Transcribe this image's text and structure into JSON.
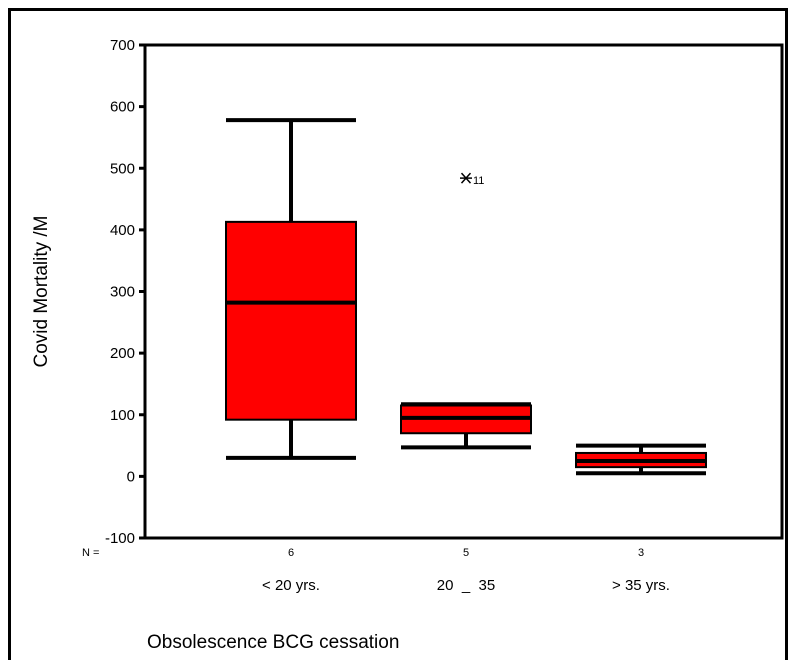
{
  "chart_data": {
    "type": "boxplot",
    "xlabel": "Obsolescence BCG cessation",
    "ylabel": "Covid Mortality /M",
    "ylim": [
      -100,
      700
    ],
    "yticks": [
      -100,
      0,
      100,
      200,
      300,
      400,
      500,
      600,
      700
    ],
    "n_prefix": "N =",
    "box_color": "#ff0000",
    "grid": false,
    "categories": [
      "< 20 yrs.",
      "20  _  35",
      "> 35 yrs."
    ],
    "boxes": [
      {
        "category": "< 20 yrs.",
        "n": "6",
        "whisker_low": 30,
        "q1": 92,
        "median": 282,
        "q3": 413,
        "whisker_high": 578,
        "outliers": []
      },
      {
        "category": "20  _  35",
        "n": "5",
        "whisker_low": 47,
        "q1": 70,
        "median": 95,
        "q3": 115,
        "whisker_high": 117,
        "outliers": [
          {
            "value": 484,
            "label": "11"
          }
        ]
      },
      {
        "category": "> 35 yrs.",
        "n": "3",
        "whisker_low": 5,
        "q1": 15,
        "median": 25,
        "q3": 38,
        "whisker_high": 50,
        "outliers": []
      }
    ]
  }
}
